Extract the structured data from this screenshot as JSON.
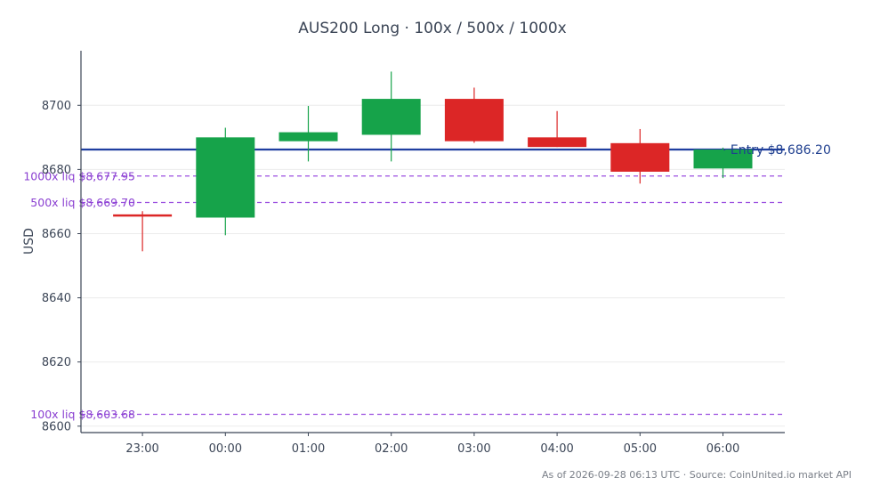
{
  "chart_data": {
    "type": "candlestick",
    "title": "AUS200 Long · 100x / 500x / 1000x",
    "ylabel": "USD",
    "xlabel": "",
    "ylim": [
      8598,
      8717
    ],
    "yticks": [
      8600,
      8620,
      8640,
      8660,
      8680,
      8700
    ],
    "grid": "horizontal",
    "categories": [
      "23:00",
      "00:00",
      "01:00",
      "02:00",
      "03:00",
      "04:00",
      "05:00",
      "06:00"
    ],
    "candles": [
      {
        "open": 8666.0,
        "high": 8667.0,
        "low": 8654.5,
        "close": 8665.4
      },
      {
        "open": 8665.0,
        "high": 8693.0,
        "low": 8659.5,
        "close": 8690.0
      },
      {
        "open": 8688.8,
        "high": 8699.8,
        "low": 8682.5,
        "close": 8691.6
      },
      {
        "open": 8690.8,
        "high": 8710.5,
        "low": 8682.5,
        "close": 8702.0
      },
      {
        "open": 8702.0,
        "high": 8705.5,
        "low": 8688.3,
        "close": 8688.8
      },
      {
        "open": 8690.0,
        "high": 8698.2,
        "low": 8687.0,
        "close": 8687.0
      },
      {
        "open": 8688.2,
        "high": 8692.6,
        "low": 8675.6,
        "close": 8679.3
      },
      {
        "open": 8680.3,
        "high": 8686.8,
        "low": 8677.3,
        "close": 8686.2
      }
    ],
    "entry": {
      "value": 8686.2,
      "label": "Entry $8,686.20",
      "color": "#1f3fa0"
    },
    "liquidation_levels": [
      {
        "value": 8677.95,
        "label": "1000x liq $8,677.95"
      },
      {
        "value": 8669.7,
        "label": "500x liq $8,669.70"
      },
      {
        "value": 8603.68,
        "label": "100x liq $8,603.68"
      }
    ],
    "colors": {
      "up": "#16a34a",
      "down": "#dc2626",
      "liq": "#9b4fe0",
      "axis": "#3b4556",
      "grid": "#ececec"
    }
  },
  "footer": {
    "source": "As of 2026-09-28 06:13 UTC · Source: CoinUnited.io market API"
  }
}
